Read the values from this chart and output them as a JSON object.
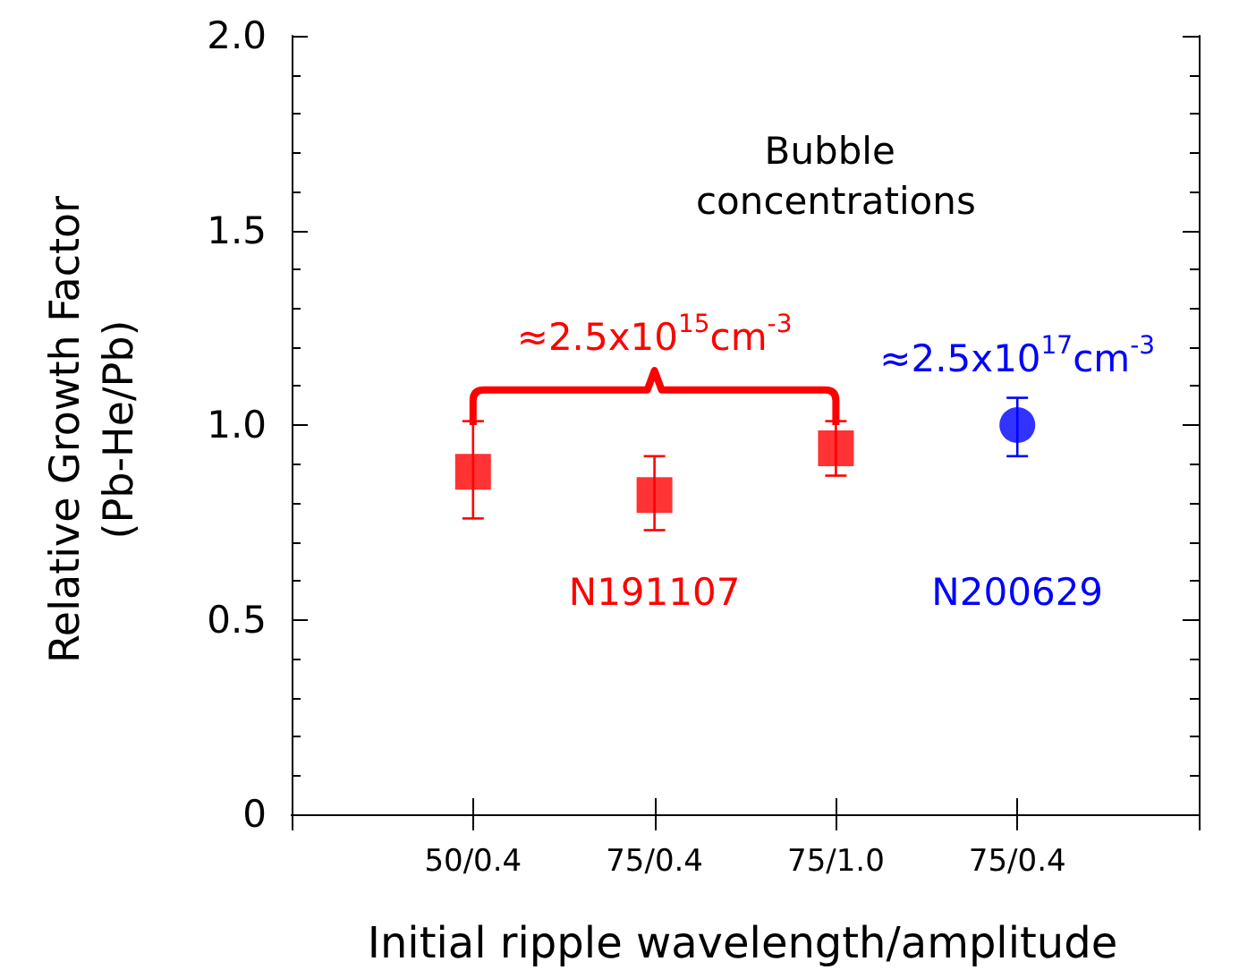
{
  "chart_data": {
    "type": "scatter",
    "xlabel": "Initial ripple wavelength/amplitude",
    "ylabel": "Relative Growth Factor\n(Pb-He/Pb)",
    "categories": [
      null,
      "50/0.4",
      "75/0.4",
      "75/1.0",
      "75/0.4",
      null
    ],
    "ylim": [
      0,
      2
    ],
    "yticks": [
      0,
      {
        "value": 0.5,
        "label": "0.5"
      },
      {
        "value": 1,
        "label": "1.0"
      },
      {
        "value": 1.5,
        "label": "1.5"
      },
      {
        "value": 2,
        "label": "2.0"
      }
    ],
    "grid": false,
    "legend": false,
    "series": [
      {
        "name": "N191107",
        "color": "#ff0000",
        "marker": "square",
        "values": [
          null,
          0.88,
          0.82,
          0.94,
          null,
          null
        ],
        "errors": [
          null,
          [
            0.76,
            1.01
          ],
          [
            0.73,
            0.92
          ],
          [
            0.87,
            1.01
          ],
          null,
          null
        ]
      },
      {
        "name": "N200629",
        "color": "#0000ff",
        "marker": "circle",
        "values": [
          null,
          null,
          null,
          null,
          1.0,
          null
        ],
        "errors": [
          null,
          null,
          null,
          null,
          [
            0.92,
            1.07
          ],
          null
        ]
      }
    ],
    "annotations": [
      "Bubble concentrations",
      "≈2.5x10$^{15}$cm$^{-3}$",
      "≈2.5x10$^{17}$cm$^{-3}$"
    ]
  }
}
